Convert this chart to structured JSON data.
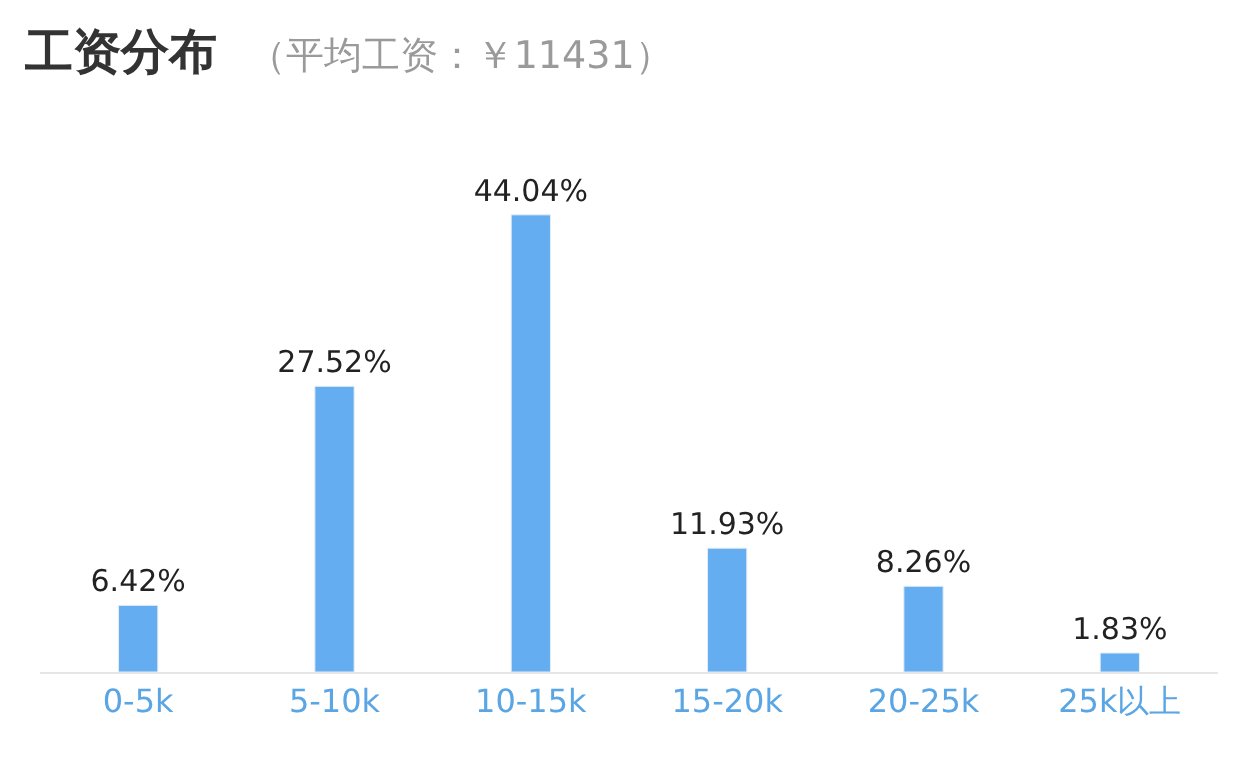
{
  "chart_data": {
    "type": "bar",
    "title": "工资分布",
    "subtitle": "（平均工资：￥11431）",
    "categories": [
      "0-5k",
      "5-10k",
      "10-15k",
      "15-20k",
      "20-25k",
      "25k以上"
    ],
    "values": [
      6.42,
      27.52,
      44.04,
      11.93,
      8.26,
      1.83
    ],
    "value_labels": [
      "6.42%",
      "27.52%",
      "44.04%",
      "11.93%",
      "8.26%",
      "1.83%"
    ],
    "color": "#64adf0"
  }
}
